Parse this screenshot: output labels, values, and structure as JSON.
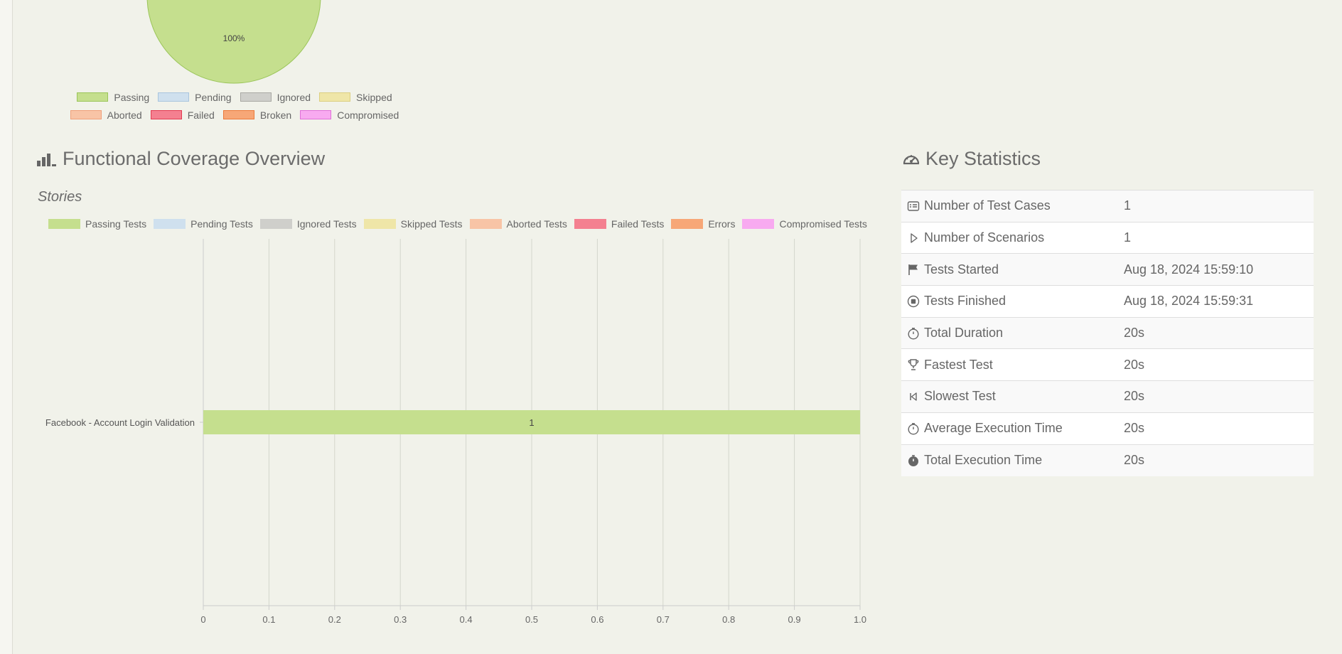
{
  "pie": {
    "percent_label": "100%",
    "legend_row1": [
      {
        "label": "Passing",
        "fill": "#c5df8e",
        "stroke": "#9bc55a"
      },
      {
        "label": "Pending",
        "fill": "#cfe0ee",
        "stroke": "#a9c5de"
      },
      {
        "label": "Ignored",
        "fill": "#cfcfcb",
        "stroke": "#a9a9a4"
      },
      {
        "label": "Skipped",
        "fill": "#efe6a8",
        "stroke": "#dccf80"
      }
    ],
    "legend_row2": [
      {
        "label": "Aborted",
        "fill": "#f8c4a6",
        "stroke": "#f0a07a"
      },
      {
        "label": "Failed",
        "fill": "#f48090",
        "stroke": "#e33a50"
      },
      {
        "label": "Broken",
        "fill": "#f7a777",
        "stroke": "#ec7a3a"
      },
      {
        "label": "Compromised",
        "fill": "#f8aaf0",
        "stroke": "#e070d8"
      }
    ]
  },
  "coverage": {
    "title": "Functional Coverage Overview",
    "subtitle": "Stories",
    "legend": [
      {
        "label": "Passing Tests",
        "color": "#c5df8e"
      },
      {
        "label": "Pending Tests",
        "color": "#cfe0ee"
      },
      {
        "label": "Ignored Tests",
        "color": "#cfcfcb"
      },
      {
        "label": "Skipped Tests",
        "color": "#efe6a8"
      },
      {
        "label": "Aborted Tests",
        "color": "#f8c4a6"
      },
      {
        "label": "Failed Tests",
        "color": "#f48090"
      },
      {
        "label": "Errors",
        "color": "#f7a777"
      },
      {
        "label": "Compromised Tests",
        "color": "#f8aaf0"
      }
    ]
  },
  "chart_data": [
    {
      "type": "pie",
      "slices": [
        {
          "name": "Passing",
          "value": 100,
          "label": "100%",
          "color": "#c5df8e"
        }
      ]
    },
    {
      "type": "bar",
      "orientation": "horizontal",
      "title": "Stories",
      "categories": [
        "Facebook - Account Login Validation"
      ],
      "series": [
        {
          "name": "Passing Tests",
          "values": [
            1
          ],
          "color": "#c5df8e"
        }
      ],
      "xlim": [
        0,
        1.0
      ],
      "xticks": [
        "0",
        "0.1",
        "0.2",
        "0.3",
        "0.4",
        "0.5",
        "0.6",
        "0.7",
        "0.8",
        "0.9",
        "1.0"
      ],
      "grid": true,
      "data_labels": [
        "1"
      ]
    }
  ],
  "key_statistics": {
    "title": "Key Statistics",
    "rows": [
      {
        "icon": "list-card-icon",
        "label": "Number of Test Cases",
        "value": "1"
      },
      {
        "icon": "play-outline-icon",
        "label": "Number of Scenarios",
        "value": "1"
      },
      {
        "icon": "flag-icon",
        "label": "Tests Started",
        "value": "Aug 18, 2024 15:59:10"
      },
      {
        "icon": "stop-circle-icon",
        "label": "Tests Finished",
        "value": "Aug 18, 2024 15:59:31"
      },
      {
        "icon": "stopwatch-icon",
        "label": "Total Duration",
        "value": "20s"
      },
      {
        "icon": "trophy-icon",
        "label": "Fastest Test",
        "value": "20s"
      },
      {
        "icon": "skip-back-icon",
        "label": "Slowest Test",
        "value": "20s"
      },
      {
        "icon": "stopwatch-icon",
        "label": "Average Execution Time",
        "value": "20s"
      },
      {
        "icon": "stopwatch-filled-icon",
        "label": "Total Execution Time",
        "value": "20s"
      }
    ]
  }
}
